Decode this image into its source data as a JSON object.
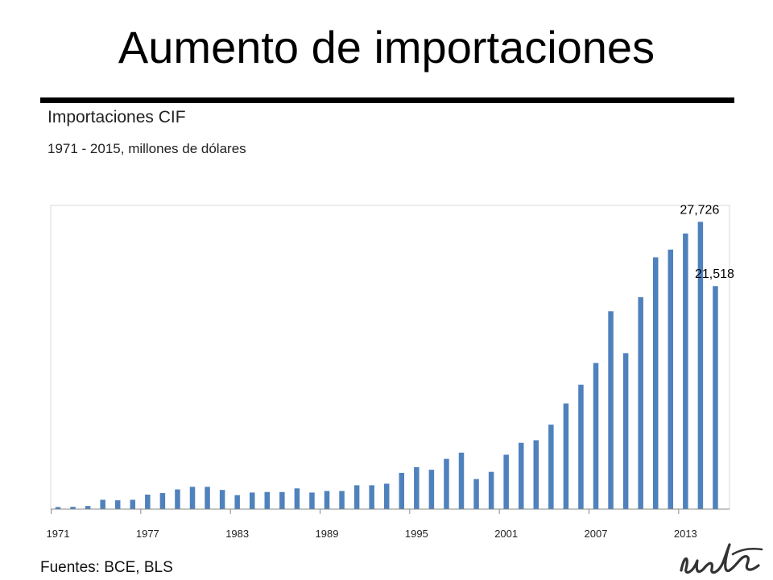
{
  "header": {
    "title": "Aumento de importaciones"
  },
  "chart_data": {
    "type": "bar",
    "title": "Importaciones CIF",
    "subtitle": "1971 - 2015, millones de dólares",
    "xlabel": "",
    "ylabel": "",
    "ylim": [
      0,
      29000
    ],
    "grid": false,
    "color": "#4F81BD",
    "categories": [
      1971,
      1972,
      1973,
      1974,
      1975,
      1976,
      1977,
      1978,
      1979,
      1980,
      1981,
      1982,
      1983,
      1984,
      1985,
      1986,
      1987,
      1988,
      1989,
      1990,
      1991,
      1992,
      1993,
      1994,
      1995,
      1996,
      1997,
      1998,
      1999,
      2000,
      2001,
      2002,
      2003,
      2004,
      2005,
      2006,
      2007,
      2008,
      2009,
      2010,
      2011,
      2012,
      2013,
      2014,
      2015
    ],
    "tick_labels": [
      "1971",
      "1977",
      "1983",
      "1989",
      "1995",
      "2001",
      "2007",
      "2013"
    ],
    "values": [
      200,
      220,
      300,
      900,
      850,
      900,
      1400,
      1550,
      1900,
      2150,
      2150,
      1850,
      1350,
      1600,
      1650,
      1650,
      2000,
      1600,
      1750,
      1750,
      2300,
      2300,
      2450,
      3500,
      4050,
      3800,
      4850,
      5450,
      2900,
      3600,
      5250,
      6400,
      6650,
      8150,
      10200,
      12000,
      14100,
      19100,
      15050,
      20450,
      24300,
      25050,
      26600,
      27726,
      21518
    ],
    "data_labels": [
      {
        "category": 2014,
        "text": "27,726"
      },
      {
        "category": 2015,
        "text": "21,518"
      }
    ]
  },
  "footer": {
    "source": "Fuentes: BCE, BLS",
    "logo": "udla"
  }
}
